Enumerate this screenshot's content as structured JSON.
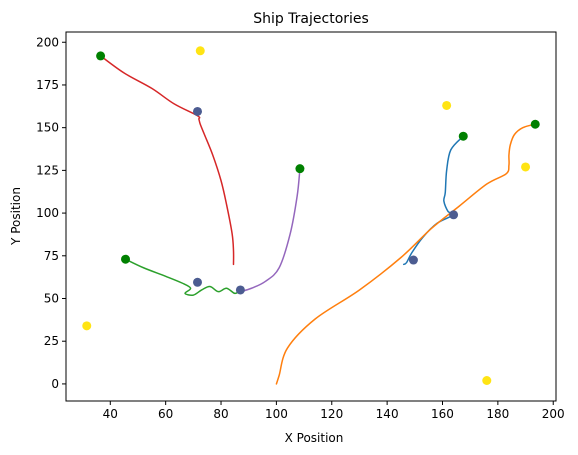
{
  "chart_data": {
    "type": "line",
    "title": "Ship Trajectories",
    "xlabel": "X Position",
    "ylabel": "Y Position",
    "xlim": [
      24,
      201
    ],
    "ylim": [
      -10,
      206
    ],
    "xticks": [
      40,
      60,
      80,
      100,
      120,
      140,
      160,
      180,
      200
    ],
    "yticks": [
      0,
      25,
      50,
      75,
      100,
      125,
      150,
      175,
      200
    ],
    "grid": false,
    "series": [
      {
        "color": "#1f77b4",
        "points": [
          [
            167.5,
            145
          ],
          [
            163,
            137
          ],
          [
            161.5,
            125
          ],
          [
            161,
            112
          ],
          [
            160.5,
            107
          ],
          [
            162,
            101
          ],
          [
            164,
            99
          ],
          [
            158,
            94
          ],
          [
            153,
            86
          ],
          [
            149,
            77
          ],
          [
            147,
            71
          ],
          [
            146,
            70
          ]
        ]
      },
      {
        "color": "#ff7f0e",
        "points": [
          [
            193.5,
            152
          ],
          [
            189,
            150
          ],
          [
            186,
            146
          ],
          [
            184.5,
            140
          ],
          [
            184,
            134
          ],
          [
            184,
            128
          ],
          [
            183,
            123
          ],
          [
            176,
            117
          ],
          [
            166,
            104
          ],
          [
            156,
            91
          ],
          [
            145,
            74
          ],
          [
            130,
            55
          ],
          [
            114,
            38
          ],
          [
            104,
            21
          ],
          [
            101,
            5
          ],
          [
            100,
            0
          ]
        ]
      },
      {
        "color": "#2ca02c",
        "points": [
          [
            45.5,
            73
          ],
          [
            52,
            68
          ],
          [
            60,
            63
          ],
          [
            66,
            59
          ],
          [
            69,
            56
          ],
          [
            67,
            53
          ],
          [
            70,
            52
          ],
          [
            73,
            55
          ],
          [
            76,
            57
          ],
          [
            79,
            54
          ],
          [
            82,
            56
          ],
          [
            85,
            53
          ],
          [
            87,
            55
          ]
        ]
      },
      {
        "color": "#d62728",
        "points": [
          [
            36.5,
            192
          ],
          [
            45,
            182
          ],
          [
            55,
            173
          ],
          [
            63,
            164
          ],
          [
            71.5,
            157
          ],
          [
            72,
            155
          ],
          [
            72.5,
            152
          ],
          [
            74,
            146
          ],
          [
            77,
            134
          ],
          [
            80,
            119
          ],
          [
            82,
            105
          ],
          [
            84,
            88
          ],
          [
            84.5,
            78
          ],
          [
            84.5,
            70
          ]
        ]
      },
      {
        "color": "#9467bd",
        "points": [
          [
            108.5,
            126
          ],
          [
            107.5,
            110
          ],
          [
            105,
            88
          ],
          [
            101,
            68
          ],
          [
            96,
            60
          ],
          [
            91,
            56
          ],
          [
            87,
            54
          ]
        ]
      }
    ],
    "markers": {
      "start": {
        "color": "#008000",
        "points": [
          [
            167.5,
            145
          ],
          [
            193.5,
            152
          ],
          [
            45.5,
            73
          ],
          [
            36.5,
            192
          ],
          [
            108.5,
            126
          ]
        ]
      },
      "waypoint": {
        "color": "#4c5c91",
        "points": [
          [
            164,
            99
          ],
          [
            71.5,
            59.5
          ],
          [
            71.5,
            159.5
          ],
          [
            87,
            55
          ],
          [
            149.5,
            72.5
          ]
        ]
      },
      "target": {
        "color": "#ffe414",
        "points": [
          [
            72.5,
            195
          ],
          [
            161.5,
            163
          ],
          [
            190,
            127
          ],
          [
            31.5,
            34
          ],
          [
            176,
            2
          ]
        ]
      }
    }
  }
}
